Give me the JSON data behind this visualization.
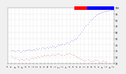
{
  "background_color": "#f0f0f0",
  "plot_bg_color": "#ffffff",
  "grid_color": "#bbbbbb",
  "blue_color": "#0000cc",
  "red_color": "#cc0000",
  "legend_red_color": "#ff0000",
  "legend_blue_color": "#0000ff",
  "xlim": [
    0,
    290
  ],
  "ylim": [
    10,
    100
  ],
  "yticks": [
    10,
    20,
    30,
    40,
    50,
    60,
    70,
    80,
    90,
    100
  ],
  "blue_x": [
    10,
    14,
    18,
    22,
    26,
    30,
    34,
    38,
    42,
    46,
    50,
    54,
    58,
    62,
    66,
    70,
    74,
    78,
    82,
    86,
    90,
    94,
    98,
    102,
    106,
    110,
    114,
    118,
    122,
    126,
    130,
    134,
    138,
    142,
    146,
    150,
    154,
    158,
    162,
    166,
    170,
    174,
    178,
    182,
    186,
    190,
    194,
    198,
    202,
    206,
    210,
    214,
    218,
    222,
    226,
    230,
    234,
    238,
    242,
    246,
    250,
    254,
    258,
    262,
    266,
    270,
    274,
    278,
    282,
    286,
    290
  ],
  "blue_y": [
    30,
    31,
    30,
    29,
    31,
    30,
    28,
    29,
    31,
    30,
    32,
    31,
    33,
    32,
    31,
    33,
    32,
    34,
    33,
    35,
    34,
    36,
    35,
    34,
    36,
    35,
    37,
    36,
    38,
    37,
    36,
    38,
    40,
    39,
    41,
    42,
    40,
    43,
    44,
    42,
    45,
    47,
    46,
    48,
    50,
    52,
    55,
    58,
    61,
    65,
    68,
    71,
    74,
    77,
    80,
    82,
    84,
    86,
    88,
    90,
    91,
    92,
    93,
    93,
    94,
    94,
    95,
    95,
    96,
    96,
    97
  ],
  "red_x": [
    10,
    14,
    18,
    22,
    26,
    30,
    34,
    38,
    42,
    46,
    50,
    54,
    58,
    62,
    66,
    70,
    74,
    78,
    82,
    86,
    90,
    94,
    98,
    102,
    106,
    110,
    114,
    118,
    122,
    126,
    130,
    134,
    138,
    142,
    146,
    150,
    154,
    158,
    162,
    166,
    170,
    174,
    178,
    182,
    186,
    190,
    194,
    198,
    202,
    206,
    210,
    214,
    218,
    222,
    226,
    230,
    234,
    238,
    242,
    246,
    250,
    254,
    258,
    262,
    266,
    270
  ],
  "red_y": [
    22,
    20,
    18,
    19,
    17,
    16,
    18,
    17,
    15,
    16,
    18,
    17,
    16,
    18,
    19,
    18,
    20,
    19,
    21,
    20,
    22,
    21,
    23,
    22,
    24,
    23,
    22,
    24,
    25,
    24,
    23,
    25,
    26,
    25,
    24,
    23,
    24,
    26,
    25,
    27,
    26,
    25,
    24,
    23,
    21,
    20,
    19,
    18,
    17,
    15,
    14,
    16,
    17,
    15,
    13,
    14,
    13,
    15,
    16,
    14,
    12,
    11,
    13,
    14,
    12,
    13
  ]
}
